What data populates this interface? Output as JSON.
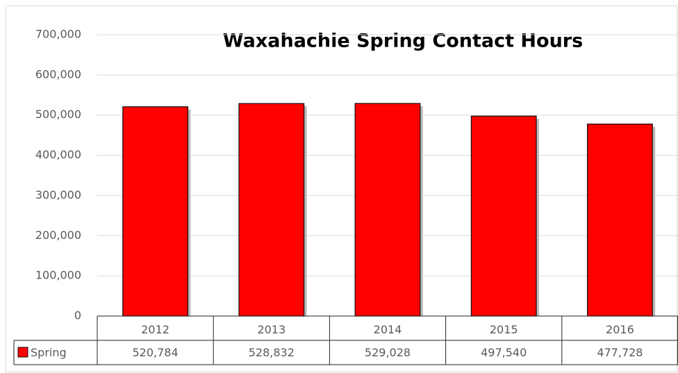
{
  "chart_data": {
    "type": "bar",
    "title": "Waxahachie Spring Contact Hours",
    "categories": [
      "2012",
      "2013",
      "2014",
      "2015",
      "2016"
    ],
    "series": [
      {
        "name": "Spring",
        "color": "#ff0000",
        "values": [
          520784,
          528832,
          529028,
          497540,
          477728
        ],
        "value_labels": [
          "520,784",
          "528,832",
          "529,028",
          "497,540",
          "477,728"
        ]
      }
    ],
    "ylim": [
      0,
      700000
    ],
    "yticks": [
      0,
      {
        "value": 100000,
        "label": "100,000"
      },
      {
        "value": 200000,
        "label": "200,000"
      },
      {
        "value": 300000,
        "label": "300,000"
      },
      {
        "value": 400000,
        "label": "400,000"
      },
      {
        "value": 500000,
        "label": "500,000"
      },
      {
        "value": 600000,
        "label": "600,000"
      },
      {
        "value": 700000,
        "label": "700,000"
      }
    ],
    "grid": true
  }
}
